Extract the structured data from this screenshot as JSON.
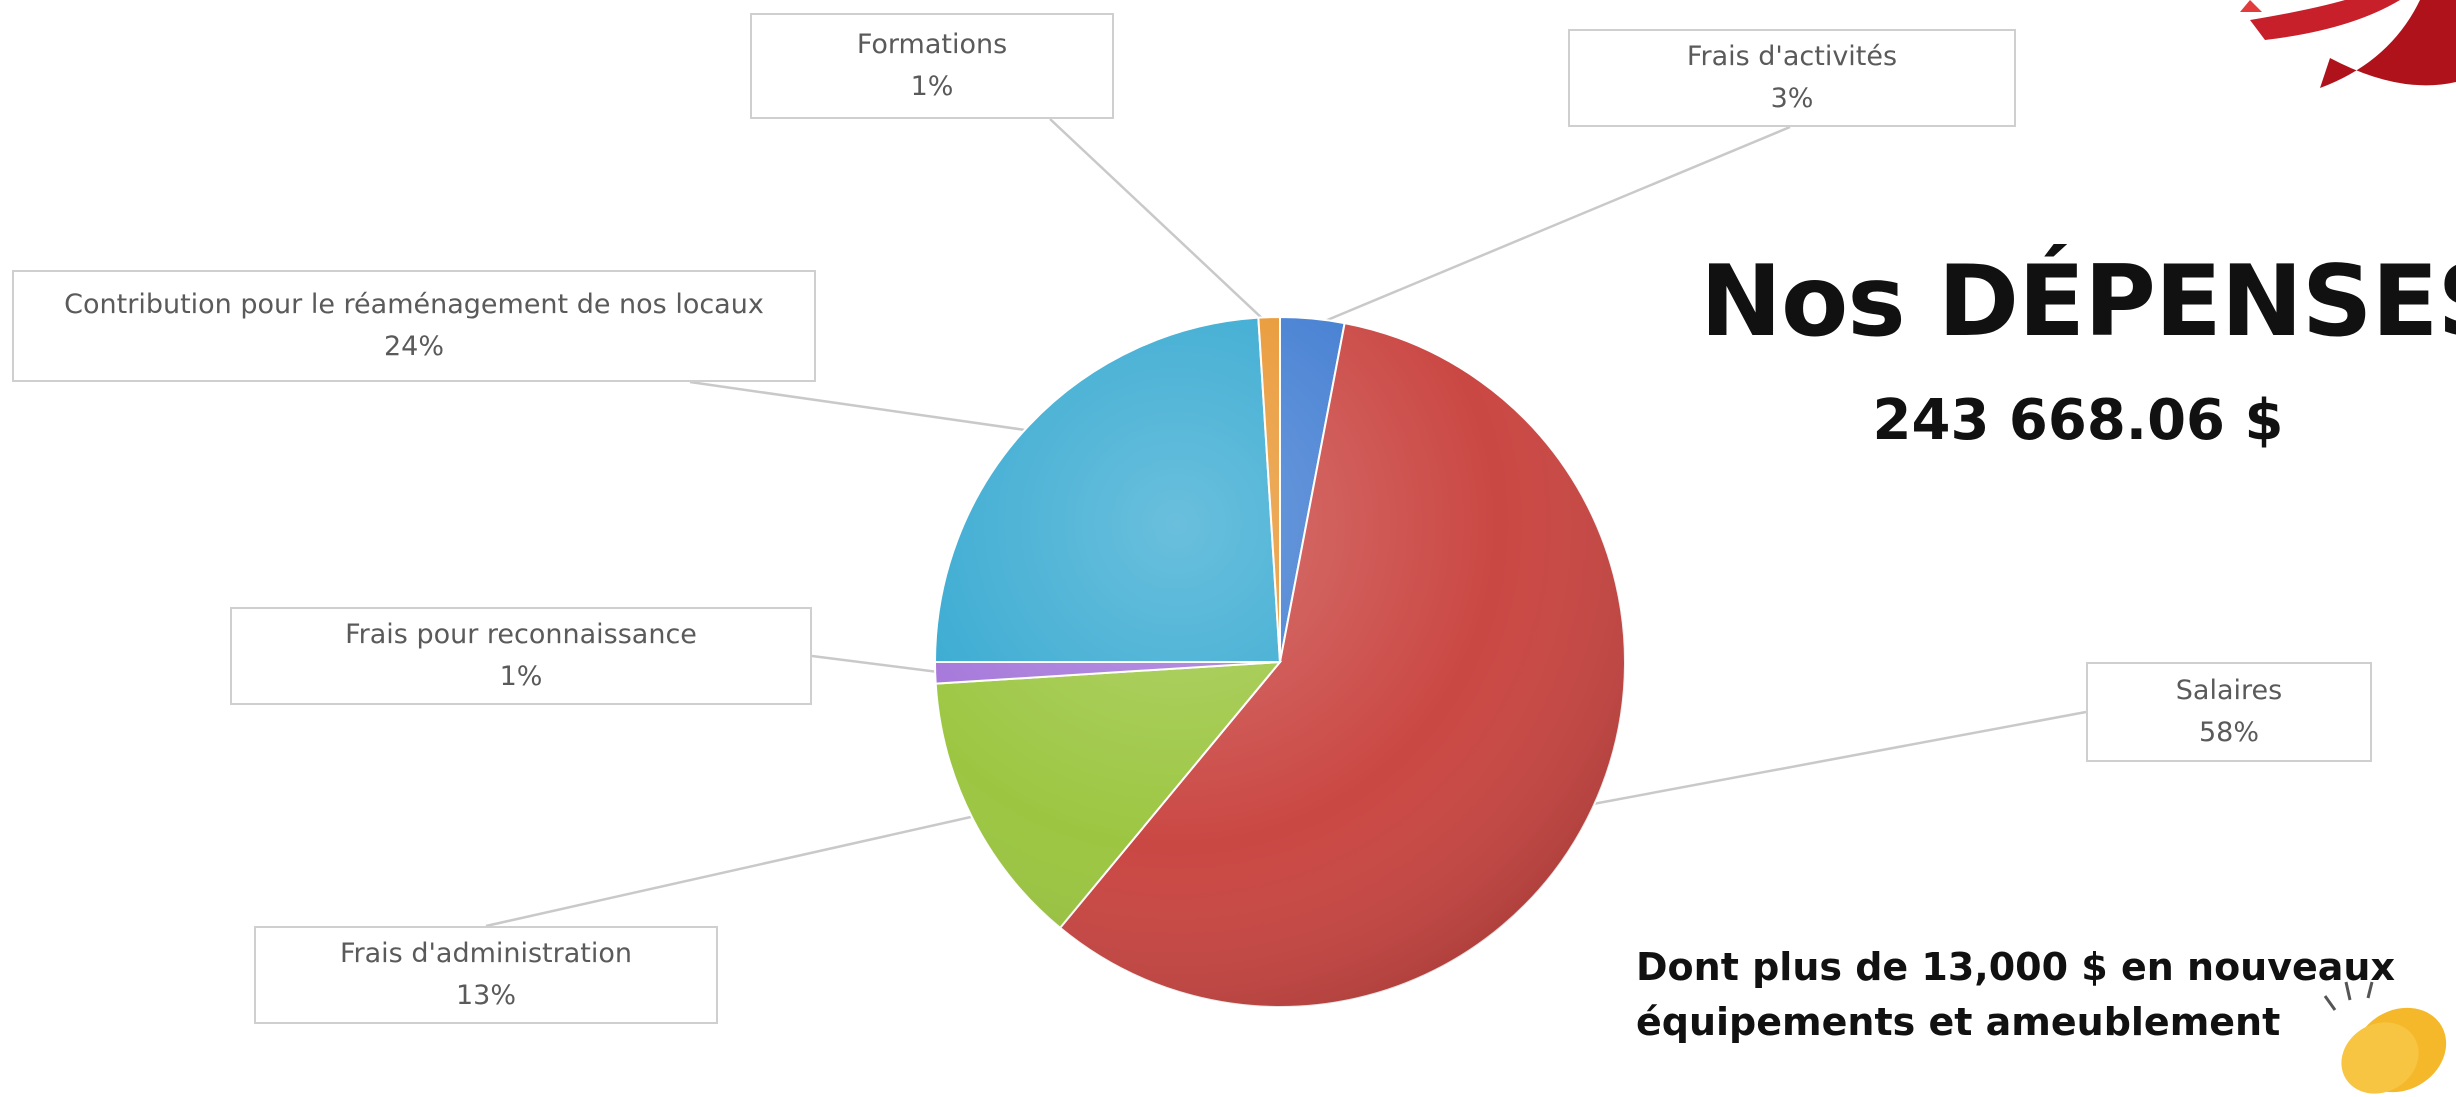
{
  "heading": "Nos DÉPENSES",
  "total": "243 668.06 $",
  "note": {
    "line1": "Dont plus de 13,000 $ en nouveaux",
    "line2": "équipements et ameublement"
  },
  "icons": [
    "clapping-hands-icon",
    "logo-swoosh-icon"
  ],
  "colors": {
    "salaires": "#c8403c",
    "frais_activites": "#3a78d0",
    "formations": "#e8922a",
    "contribution": "#2fa6cf",
    "reconnaissance": "#a070d8",
    "administration": "#98c43a"
  },
  "chart_data": {
    "type": "pie",
    "start": "top, clockwise",
    "slices": [
      {
        "label": "Frais d'activités",
        "percent_label": "3%",
        "value": 3,
        "color": "#3a78d0"
      },
      {
        "label": "Salaires",
        "percent_label": "58%",
        "value": 58,
        "color": "#c8403c"
      },
      {
        "label": "Frais d'administration",
        "percent_label": "13%",
        "value": 13,
        "color": "#98c43a"
      },
      {
        "label": "Frais pour reconnaissance",
        "percent_label": "1%",
        "value": 1,
        "color": "#a070d8"
      },
      {
        "label": "Contribution pour le réaménagement de nos locaux",
        "percent_label": "24%",
        "value": 24,
        "color": "#2fa6cf"
      },
      {
        "label": "Formations",
        "percent_label": "1%",
        "value": 1,
        "color": "#e8922a"
      }
    ]
  }
}
